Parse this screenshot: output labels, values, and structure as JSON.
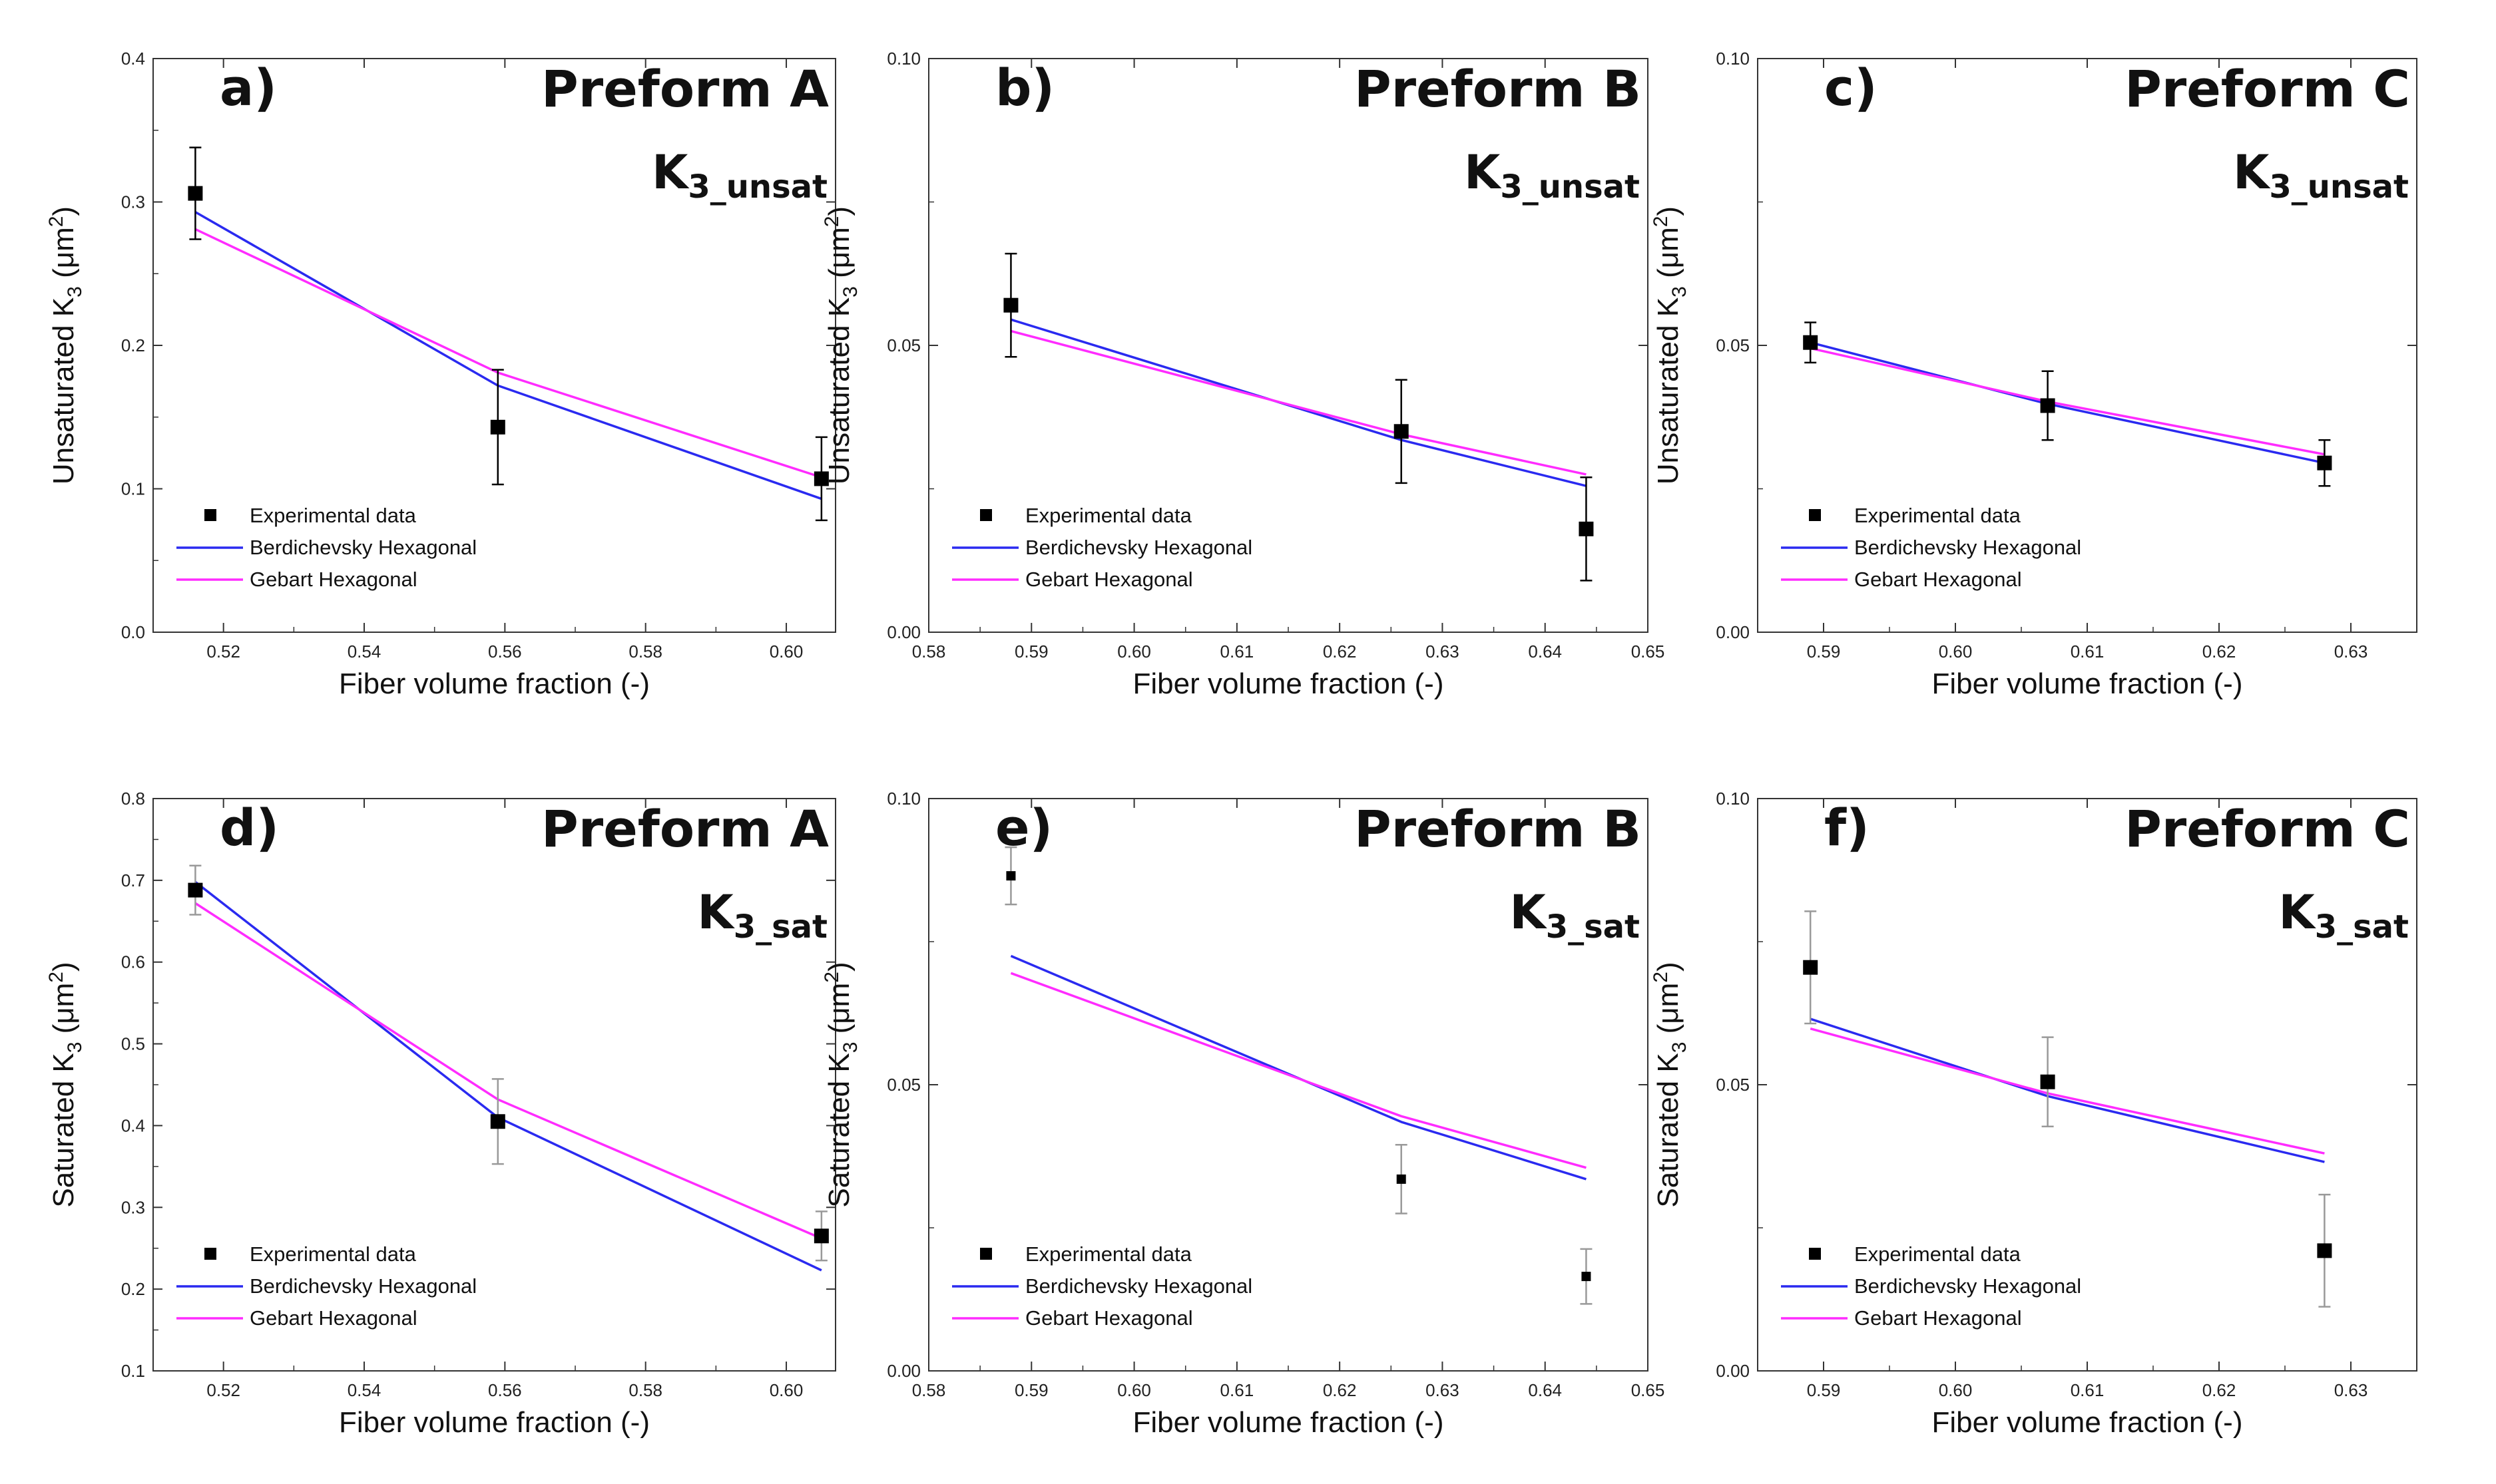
{
  "figure": {
    "legend_labels": [
      "Experimental data",
      "Berdichevsky Hexagonal",
      "Gebart Hexagonal"
    ],
    "colors": {
      "berdichevsky": "#2a2af0",
      "gebart": "#ff2cff",
      "experimental": "#000000",
      "axis": "#333333"
    }
  },
  "chart_data": [
    {
      "type": "line",
      "panel": "a)",
      "title": "Preform A",
      "k_label": {
        "main": "K",
        "sub": "3_unsat"
      },
      "xlabel": "Fiber volume fraction (-)",
      "ylabel": {
        "prefix": "Unsaturated K",
        "sub": "3",
        "unit_open": " (μm",
        "sup": "2",
        "unit_close": ")"
      },
      "xlim": [
        0.51,
        0.607
      ],
      "ylim": [
        0.0,
        0.4
      ],
      "x_ticks": [
        0.52,
        0.54,
        0.56,
        0.58,
        0.6
      ],
      "x_tick_labels": [
        "0.52",
        "0.54",
        "0.56",
        "0.58",
        "0.60"
      ],
      "y_ticks": [
        0.0,
        0.1,
        0.2,
        0.3,
        0.4
      ],
      "y_tick_labels": [
        "0.0",
        "0.1",
        "0.2",
        "0.3",
        "0.4"
      ],
      "legend_position": "lower-left",
      "experimental": {
        "x": [
          0.516,
          0.559,
          0.605
        ],
        "y": [
          0.306,
          0.143,
          0.107
        ],
        "err": [
          0.032,
          0.04,
          0.029
        ],
        "error_color": "#000000"
      },
      "series": [
        {
          "name": "Berdichevsky Hexagonal",
          "x": [
            0.516,
            0.559,
            0.605
          ],
          "y": [
            0.293,
            0.172,
            0.093
          ]
        },
        {
          "name": "Gebart Hexagonal",
          "x": [
            0.516,
            0.559,
            0.605
          ],
          "y": [
            0.281,
            0.181,
            0.108
          ]
        }
      ]
    },
    {
      "type": "line",
      "panel": "b)",
      "title": "Preform B",
      "k_label": {
        "main": "K",
        "sub": "3_unsat"
      },
      "xlabel": "Fiber volume fraction (-)",
      "ylabel": {
        "prefix": "Unsaturated K",
        "sub": "3",
        "unit_open": " (μm",
        "sup": "2",
        "unit_close": ")"
      },
      "xlim": [
        0.58,
        0.65
      ],
      "ylim": [
        0.0,
        0.1
      ],
      "x_ticks": [
        0.58,
        0.59,
        0.6,
        0.61,
        0.62,
        0.63,
        0.64,
        0.65
      ],
      "x_tick_labels": [
        "0.58",
        "0.59",
        "0.60",
        "0.61",
        "0.62",
        "0.63",
        "0.64",
        "0.65"
      ],
      "y_ticks": [
        0.0,
        0.05,
        0.1
      ],
      "y_tick_labels": [
        "0.00",
        "0.05",
        "0.10"
      ],
      "legend_position": "lower-left",
      "experimental": {
        "x": [
          0.588,
          0.626,
          0.644
        ],
        "y": [
          0.057,
          0.035,
          0.018
        ],
        "err": [
          0.009,
          0.009,
          0.009
        ],
        "error_color": "#000000"
      },
      "series": [
        {
          "name": "Berdichevsky Hexagonal",
          "x": [
            0.588,
            0.626,
            0.644
          ],
          "y": [
            0.0545,
            0.0335,
            0.0255
          ]
        },
        {
          "name": "Gebart Hexagonal",
          "x": [
            0.588,
            0.626,
            0.644
          ],
          "y": [
            0.0525,
            0.0345,
            0.0275
          ]
        }
      ]
    },
    {
      "type": "line",
      "panel": "c)",
      "title": "Preform C",
      "k_label": {
        "main": "K",
        "sub": "3_unsat"
      },
      "xlabel": "Fiber volume fraction (-)",
      "ylabel": {
        "prefix": "Unsaturated K",
        "sub": "3",
        "unit_open": " (μm",
        "sup": "2",
        "unit_close": ")"
      },
      "xlim": [
        0.585,
        0.635
      ],
      "ylim": [
        0.0,
        0.1
      ],
      "x_ticks": [
        0.59,
        0.6,
        0.61,
        0.62,
        0.63
      ],
      "x_tick_labels": [
        "0.59",
        "0.60",
        "0.61",
        "0.62",
        "0.63"
      ],
      "y_ticks": [
        0.0,
        0.05,
        0.1
      ],
      "y_tick_labels": [
        "0.00",
        "0.05",
        "0.10"
      ],
      "legend_position": "lower-left",
      "experimental": {
        "x": [
          0.589,
          0.607,
          0.628
        ],
        "y": [
          0.0505,
          0.0395,
          0.0295
        ],
        "err": [
          0.0035,
          0.006,
          0.004
        ],
        "error_color": "#000000"
      },
      "series": [
        {
          "name": "Berdichevsky Hexagonal",
          "x": [
            0.589,
            0.607,
            0.628
          ],
          "y": [
            0.0505,
            0.0398,
            0.0295
          ]
        },
        {
          "name": "Gebart Hexagonal",
          "x": [
            0.589,
            0.607,
            0.628
          ],
          "y": [
            0.0495,
            0.0402,
            0.031
          ]
        }
      ]
    },
    {
      "type": "line",
      "panel": "d)",
      "title": "Preform A",
      "k_label": {
        "main": "K",
        "sub": "3_sat"
      },
      "xlabel": "Fiber volume fraction (-)",
      "ylabel": {
        "prefix": "Saturated K",
        "sub": "3",
        "unit_open": " (μm",
        "sup": "2",
        "unit_close": ")"
      },
      "xlim": [
        0.51,
        0.607
      ],
      "ylim": [
        0.1,
        0.8
      ],
      "x_ticks": [
        0.52,
        0.54,
        0.56,
        0.58,
        0.6
      ],
      "x_tick_labels": [
        "0.52",
        "0.54",
        "0.56",
        "0.58",
        "0.60"
      ],
      "y_ticks": [
        0.1,
        0.2,
        0.3,
        0.4,
        0.5,
        0.6,
        0.7,
        0.8
      ],
      "y_tick_labels": [
        "0.1",
        "0.2",
        "0.3",
        "0.4",
        "0.5",
        "0.6",
        "0.7",
        "0.8"
      ],
      "legend_position": "lower-left",
      "experimental": {
        "x": [
          0.516,
          0.559,
          0.605
        ],
        "y": [
          0.688,
          0.405,
          0.265
        ],
        "err": [
          0.03,
          0.052,
          0.03
        ],
        "error_color": "#999999"
      },
      "series": [
        {
          "name": "Berdichevsky Hexagonal",
          "x": [
            0.516,
            0.559,
            0.605
          ],
          "y": [
            0.698,
            0.41,
            0.223
          ]
        },
        {
          "name": "Gebart Hexagonal",
          "x": [
            0.516,
            0.559,
            0.605
          ],
          "y": [
            0.672,
            0.432,
            0.262
          ]
        }
      ]
    },
    {
      "type": "line",
      "panel": "e)",
      "title": "Preform B",
      "k_label": {
        "main": "K",
        "sub": "3_sat"
      },
      "xlabel": "Fiber volume fraction (-)",
      "ylabel": {
        "prefix": "Saturated K",
        "sub": "3",
        "unit_open": " (μm",
        "sup": "2",
        "unit_close": ")"
      },
      "xlim": [
        0.58,
        0.65
      ],
      "ylim": [
        0.0,
        0.1
      ],
      "x_ticks": [
        0.58,
        0.59,
        0.6,
        0.61,
        0.62,
        0.63,
        0.64,
        0.65
      ],
      "x_tick_labels": [
        "0.58",
        "0.59",
        "0.60",
        "0.61",
        "0.62",
        "0.63",
        "0.64",
        "0.65"
      ],
      "y_ticks": [
        0.0,
        0.05,
        0.1
      ],
      "y_tick_labels": [
        "0.00",
        "0.05",
        "0.10"
      ],
      "legend_position": "lower-left",
      "experimental": {
        "x": [
          0.588,
          0.626,
          0.644
        ],
        "y": [
          0.0865,
          0.0335,
          0.0165
        ],
        "err": [
          0.005,
          0.006,
          0.0048
        ],
        "error_color": "#999999"
      },
      "series": [
        {
          "name": "Berdichevsky Hexagonal",
          "x": [
            0.588,
            0.626,
            0.644
          ],
          "y": [
            0.0725,
            0.0435,
            0.0335
          ]
        },
        {
          "name": "Gebart Hexagonal",
          "x": [
            0.588,
            0.626,
            0.644
          ],
          "y": [
            0.0695,
            0.0445,
            0.0355
          ]
        }
      ]
    },
    {
      "type": "line",
      "panel": "f)",
      "title": "Preform C",
      "k_label": {
        "main": "K",
        "sub": "3_sat"
      },
      "xlabel": "Fiber volume fraction (-)",
      "ylabel": {
        "prefix": "Saturated K",
        "sub": "3",
        "unit_open": " (μm",
        "sup": "2",
        "unit_close": ")"
      },
      "xlim": [
        0.585,
        0.635
      ],
      "ylim": [
        0.0,
        0.1
      ],
      "x_ticks": [
        0.59,
        0.6,
        0.61,
        0.62,
        0.63
      ],
      "x_tick_labels": [
        "0.59",
        "0.60",
        "0.61",
        "0.62",
        "0.63"
      ],
      "y_ticks": [
        0.0,
        0.05,
        0.1
      ],
      "y_tick_labels": [
        "0.00",
        "0.05",
        "0.10"
      ],
      "legend_position": "lower-left",
      "experimental": {
        "x": [
          0.589,
          0.607,
          0.628
        ],
        "y": [
          0.0705,
          0.0505,
          0.021
        ],
        "err": [
          0.0098,
          0.0078,
          0.0098
        ],
        "error_color": "#999999"
      },
      "series": [
        {
          "name": "Berdichevsky Hexagonal",
          "x": [
            0.589,
            0.607,
            0.628
          ],
          "y": [
            0.0615,
            0.048,
            0.0365
          ]
        },
        {
          "name": "Gebart Hexagonal",
          "x": [
            0.589,
            0.607,
            0.628
          ],
          "y": [
            0.0598,
            0.0485,
            0.038
          ]
        }
      ]
    }
  ]
}
